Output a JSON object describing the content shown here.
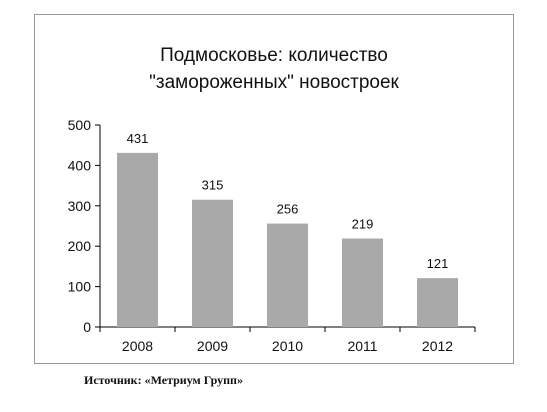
{
  "chart_data": {
    "type": "bar",
    "title_lines": [
      "Подмосковье: количество",
      "\"замороженных\"  новостроек"
    ],
    "categories": [
      "2008",
      "2009",
      "2010",
      "2011",
      "2012"
    ],
    "values": [
      431,
      315,
      256,
      219,
      121
    ],
    "data_labels": [
      "431",
      "315",
      "256",
      "219",
      "121"
    ],
    "y_ticks": [
      0,
      100,
      200,
      300,
      400,
      500
    ],
    "ylim": [
      0,
      500
    ],
    "xlabel": "",
    "ylabel": "",
    "grid": false,
    "legend": "none",
    "bar_color": "#a9a9a9"
  },
  "source": "Источник: «Метриум Групп»"
}
